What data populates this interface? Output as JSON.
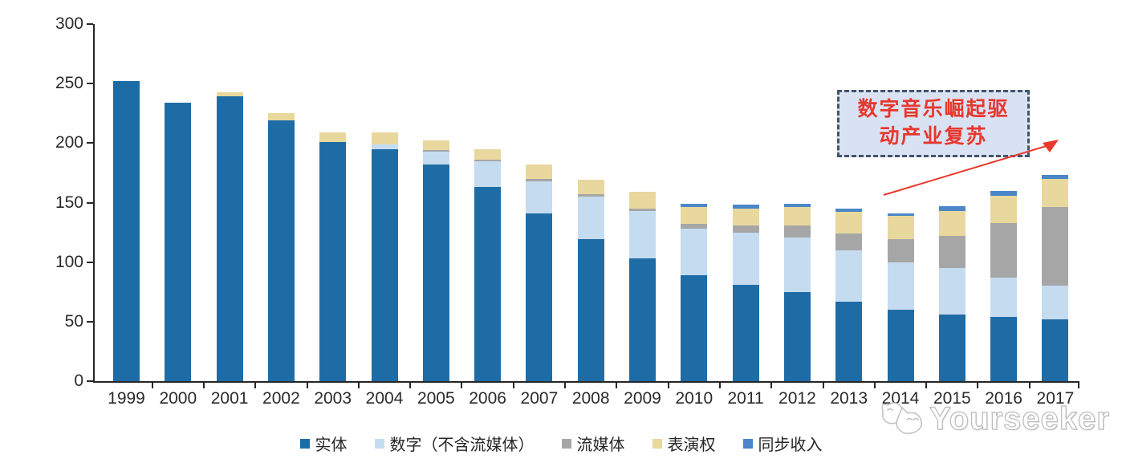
{
  "chart_data": {
    "type": "bar",
    "stacked": true,
    "title": "",
    "xlabel": "",
    "ylabel": "",
    "ylim": [
      0,
      300
    ],
    "y_ticks": [
      0,
      50,
      100,
      150,
      200,
      250,
      300
    ],
    "grid": false,
    "legend_position": "bottom",
    "axis_color": "#262626",
    "categories": [
      "1999",
      "2000",
      "2001",
      "2002",
      "2003",
      "2004",
      "2005",
      "2006",
      "2007",
      "2008",
      "2009",
      "2010",
      "2011",
      "2012",
      "2013",
      "2014",
      "2015",
      "2016",
      "2017"
    ],
    "series": [
      {
        "name": "实体",
        "color": "#1E6CA6",
        "values": [
          252,
          234,
          239,
          219,
          201,
          195,
          182,
          163,
          141,
          119,
          103,
          89,
          81,
          75,
          67,
          60,
          56,
          54,
          52
        ]
      },
      {
        "name": "数字（不含流媒体）",
        "color": "#C5DBF0",
        "values": [
          0,
          0,
          0,
          0,
          0,
          4,
          11,
          22,
          27,
          36,
          40,
          39,
          44,
          46,
          43,
          40,
          39,
          33,
          28
        ]
      },
      {
        "name": "流媒体",
        "color": "#A6A6A6",
        "values": [
          0,
          0,
          0,
          0,
          0,
          0,
          1,
          1,
          2,
          2,
          2,
          4,
          6,
          10,
          14,
          19,
          27,
          46,
          66
        ]
      },
      {
        "name": "表演权",
        "color": "#E8D89E",
        "values": [
          0,
          0,
          4,
          6,
          8,
          10,
          8,
          9,
          12,
          12,
          14,
          14,
          14,
          15,
          18,
          20,
          21,
          23,
          24
        ]
      },
      {
        "name": "同步收入",
        "color": "#4A86C8",
        "values": [
          0,
          0,
          0,
          0,
          0,
          0,
          0,
          0,
          0,
          0,
          0,
          3,
          3,
          3,
          3,
          2,
          4,
          4,
          3
        ]
      }
    ]
  },
  "annotation": {
    "line1": "数字音乐崛起驱",
    "line2": "动产业复苏",
    "border_color": "#44546A",
    "fill_color": "#D9E2F3",
    "text_color": "#E8372C",
    "arrow_color": "#E8372C"
  },
  "watermark": {
    "text": "Yourseeker",
    "logo": "yourseeker-cat-logo-icon"
  }
}
